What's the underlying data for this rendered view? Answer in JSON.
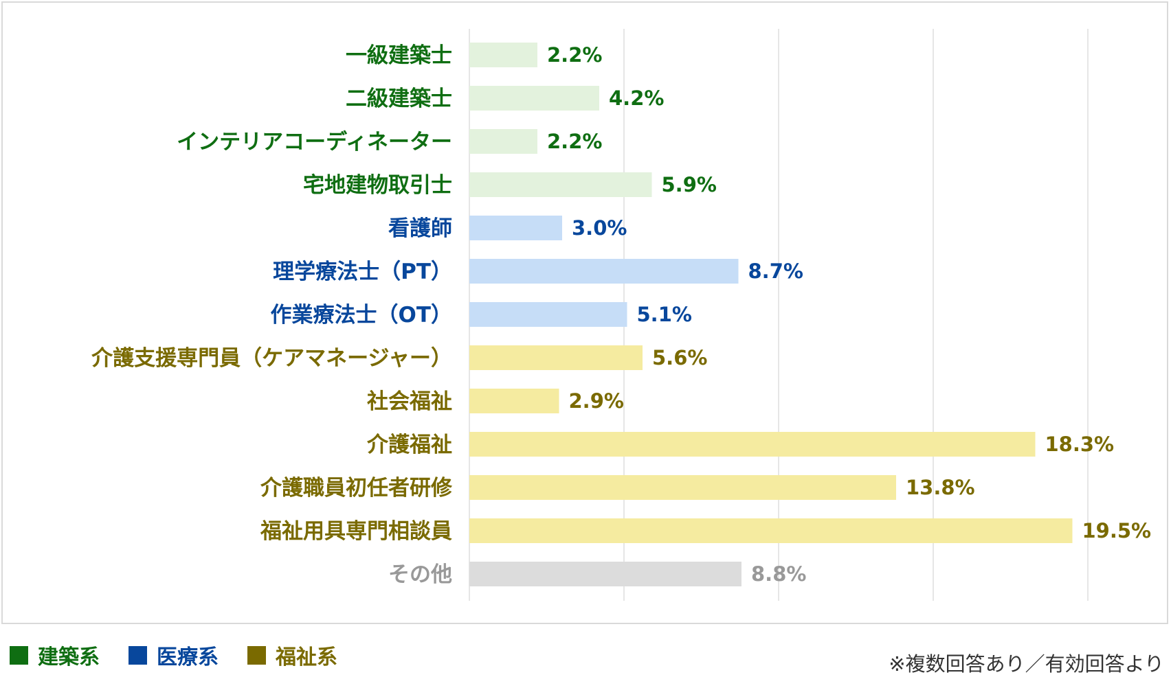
{
  "colors": {
    "architecture": "#0f6e12",
    "medical": "#08479c",
    "welfare": "#7a6a00",
    "other": "#999999",
    "architecture_bar": "#e3f2dd",
    "medical_bar": "#c6ddf7",
    "welfare_bar": "#f5eba0",
    "other_bar": "#dcdcdc",
    "grid": "#e6e6e6"
  },
  "chart_data": {
    "type": "bar",
    "orientation": "horizontal",
    "categories": [
      "一級建築士",
      "二級建築士",
      "インテリアコーディネーター",
      "宅地建物取引士",
      "看護師",
      "理学療法士（PT）",
      "作業療法士（OT）",
      "介護支援専門員（ケアマネージャー）",
      "社会福祉",
      "介護福祉",
      "介護職員初任者研修",
      "福祉用具専門相談員",
      "その他"
    ],
    "values": [
      2.2,
      4.2,
      2.2,
      5.9,
      3.0,
      8.7,
      5.1,
      5.6,
      2.9,
      18.3,
      13.8,
      19.5,
      8.8
    ],
    "value_labels": [
      "2.2%",
      "4.2%",
      "2.2%",
      "5.9%",
      "3.0%",
      "8.7%",
      "5.1%",
      "5.6%",
      "2.9%",
      "18.3%",
      "13.8%",
      "19.5%",
      "8.8%"
    ],
    "groups": [
      "architecture",
      "architecture",
      "architecture",
      "architecture",
      "medical",
      "medical",
      "medical",
      "welfare",
      "welfare",
      "welfare",
      "welfare",
      "welfare",
      "other"
    ],
    "xlim": [
      0,
      20
    ],
    "grid_step": 5,
    "grid": true,
    "legend_position": "bottom-left"
  },
  "legend": [
    {
      "label": "建築系",
      "group": "architecture"
    },
    {
      "label": "医療系",
      "group": "medical"
    },
    {
      "label": "福祉系",
      "group": "welfare"
    }
  ],
  "footnote": "※複数回答あり／有効回答より"
}
